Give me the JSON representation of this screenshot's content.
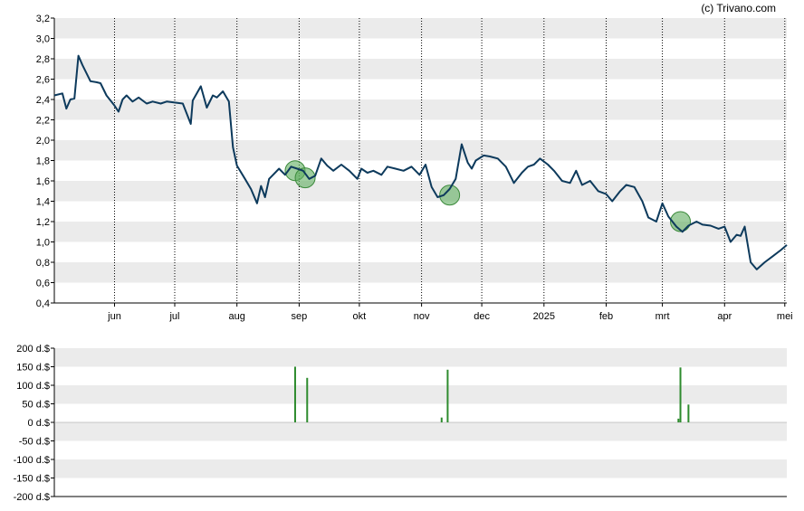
{
  "credit": "(c) Trivano.com",
  "colors": {
    "price_line": "#0d3a5c",
    "band": "#ebebeb",
    "marker_fill": "#5fae5f",
    "bar": "#2e8b2e",
    "axis": "#000000",
    "vgrid": "#000000"
  },
  "chart_data": [
    {
      "type": "line",
      "title": "",
      "x_ticks": [
        "jun",
        "jul",
        "aug",
        "sep",
        "okt",
        "nov",
        "dec",
        "2025",
        "feb",
        "mrt",
        "apr",
        "mei"
      ],
      "y_ticks": [
        "0,4",
        "0,6",
        "0,8",
        "1,0",
        "1,2",
        "1,4",
        "1,6",
        "1,8",
        "2,0",
        "2,2",
        "2,4",
        "2,6",
        "2,8",
        "3,0",
        "3,2"
      ],
      "ylim": [
        0.4,
        3.2
      ],
      "x_range": [
        "2024-05-02",
        "2025-05-02"
      ],
      "grid": "alternating horizontal bands, dotted vertical month lines",
      "series": [
        {
          "x": [
            "2024-05-02",
            "2024-05-06",
            "2024-05-08",
            "2024-05-10",
            "2024-05-12",
            "2024-05-14",
            "2024-05-16",
            "2024-05-20",
            "2024-05-23",
            "2024-05-25",
            "2024-05-28",
            "2024-06-01",
            "2024-06-03",
            "2024-06-05",
            "2024-06-07",
            "2024-06-10",
            "2024-06-13",
            "2024-06-17",
            "2024-06-20",
            "2024-06-24",
            "2024-06-27",
            "2024-07-01",
            "2024-07-05",
            "2024-07-09",
            "2024-07-10",
            "2024-07-14",
            "2024-07-17",
            "2024-07-20",
            "2024-07-22",
            "2024-07-25",
            "2024-07-28",
            "2024-07-30",
            "2024-08-01",
            "2024-08-05",
            "2024-08-08",
            "2024-08-11",
            "2024-08-13",
            "2024-08-15",
            "2024-08-17",
            "2024-08-19",
            "2024-08-22",
            "2024-08-25",
            "2024-08-28",
            "2024-08-31",
            "2024-09-03",
            "2024-09-06",
            "2024-09-09",
            "2024-09-12",
            "2024-09-15",
            "2024-09-18",
            "2024-09-22",
            "2024-09-26",
            "2024-09-30",
            "2024-10-02",
            "2024-10-05",
            "2024-10-08",
            "2024-10-12",
            "2024-10-15",
            "2024-10-19",
            "2024-10-23",
            "2024-10-27",
            "2024-10-31",
            "2024-11-03",
            "2024-11-06",
            "2024-11-09",
            "2024-11-12",
            "2024-11-15",
            "2024-11-18",
            "2024-11-21",
            "2024-11-24",
            "2024-11-26",
            "2024-11-28",
            "2024-12-02",
            "2024-12-05",
            "2024-12-09",
            "2024-12-13",
            "2024-12-17",
            "2024-12-21",
            "2024-12-24",
            "2024-12-27",
            "2024-12-30",
            "2025-01-03",
            "2025-01-06",
            "2025-01-10",
            "2025-01-14",
            "2025-01-17",
            "2025-01-20",
            "2025-01-24",
            "2025-01-28",
            "2025-02-01",
            "2025-02-04",
            "2025-02-08",
            "2025-02-11",
            "2025-02-15",
            "2025-02-19",
            "2025-02-22",
            "2025-02-26",
            "2025-03-01",
            "2025-03-04",
            "2025-03-08",
            "2025-03-11",
            "2025-03-14",
            "2025-03-18",
            "2025-03-21",
            "2025-03-25",
            "2025-03-29",
            "2025-04-01",
            "2025-04-04",
            "2025-04-07",
            "2025-04-09",
            "2025-04-11",
            "2025-04-14",
            "2025-04-17",
            "2025-04-21",
            "2025-04-25",
            "2025-04-29",
            "2025-05-02"
          ],
          "y": [
            2.44,
            2.46,
            2.31,
            2.4,
            2.41,
            2.83,
            2.74,
            2.58,
            2.57,
            2.56,
            2.44,
            2.34,
            2.28,
            2.4,
            2.44,
            2.38,
            2.42,
            2.36,
            2.38,
            2.36,
            2.38,
            2.37,
            2.36,
            2.16,
            2.39,
            2.53,
            2.32,
            2.44,
            2.42,
            2.48,
            2.38,
            1.93,
            1.75,
            1.62,
            1.52,
            1.38,
            1.55,
            1.44,
            1.62,
            1.66,
            1.72,
            1.66,
            1.74,
            1.72,
            1.7,
            1.62,
            1.65,
            1.82,
            1.75,
            1.7,
            1.76,
            1.7,
            1.62,
            1.72,
            1.68,
            1.7,
            1.66,
            1.74,
            1.72,
            1.7,
            1.74,
            1.66,
            1.76,
            1.54,
            1.44,
            1.46,
            1.52,
            1.62,
            1.96,
            1.78,
            1.72,
            1.8,
            1.85,
            1.84,
            1.82,
            1.74,
            1.58,
            1.68,
            1.74,
            1.76,
            1.82,
            1.76,
            1.7,
            1.6,
            1.58,
            1.7,
            1.56,
            1.6,
            1.5,
            1.47,
            1.4,
            1.5,
            1.56,
            1.54,
            1.4,
            1.24,
            1.2,
            1.38,
            1.25,
            1.15,
            1.1,
            1.16,
            1.2,
            1.17,
            1.16,
            1.13,
            1.15,
            1.0,
            1.07,
            1.06,
            1.15,
            0.8,
            0.73,
            0.8,
            0.86,
            0.92,
            0.97
          ]
        }
      ],
      "markers": [
        {
          "x": "2024-08-30",
          "y": 1.7
        },
        {
          "x": "2024-09-04",
          "y": 1.63
        },
        {
          "x": "2024-11-15",
          "y": 1.46
        },
        {
          "x": "2025-03-10",
          "y": 1.2
        }
      ]
    },
    {
      "type": "bar",
      "title": "",
      "y_ticks": [
        "200 d.$",
        "150 d.$",
        "100 d.$",
        "50 d.$",
        "0 d.$",
        "-50 d.$",
        "-100 d.$",
        "-150 d.$",
        "-200 d.$"
      ],
      "ylim": [
        -200,
        200
      ],
      "bars": [
        {
          "x": "2024-08-30",
          "value": 150
        },
        {
          "x": "2024-09-05",
          "value": 120
        },
        {
          "x": "2024-11-11",
          "value": 13
        },
        {
          "x": "2024-11-14",
          "value": 142
        },
        {
          "x": "2025-03-09",
          "value": 10
        },
        {
          "x": "2025-03-10",
          "value": 148
        },
        {
          "x": "2025-03-14",
          "value": 48
        }
      ]
    }
  ]
}
